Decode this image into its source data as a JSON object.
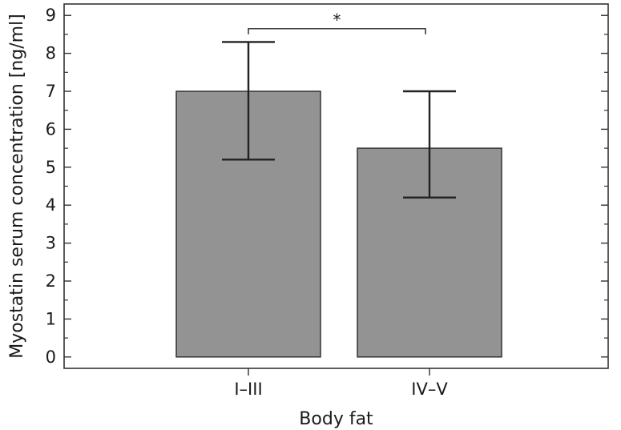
{
  "chart_data": {
    "type": "bar",
    "title": "",
    "xlabel": "Body fat",
    "ylabel": "Myostatin serum concentration [ng/ml]",
    "categories": [
      "I–III",
      "IV–V"
    ],
    "values": [
      7.0,
      5.5
    ],
    "error_bars": [
      {
        "low": 5.2,
        "high": 8.3
      },
      {
        "low": 4.2,
        "high": 7.0
      }
    ],
    "ylim": [
      -0.3,
      9.3
    ],
    "yticks": [
      0,
      1,
      2,
      3,
      4,
      5,
      6,
      7,
      8,
      9
    ],
    "ytick_labels": [
      "0",
      "1",
      "2",
      "3",
      "4",
      "5",
      "6",
      "7",
      "8",
      "9"
    ],
    "significance": {
      "between": [
        0,
        1
      ],
      "label": "*",
      "level": 8.65,
      "drop": 0.15
    },
    "grid": false,
    "legend": "none",
    "colors": {
      "bar_fill": "#939393",
      "bar_stroke": "#333333",
      "axis": "#333333",
      "error": "#222222"
    }
  }
}
